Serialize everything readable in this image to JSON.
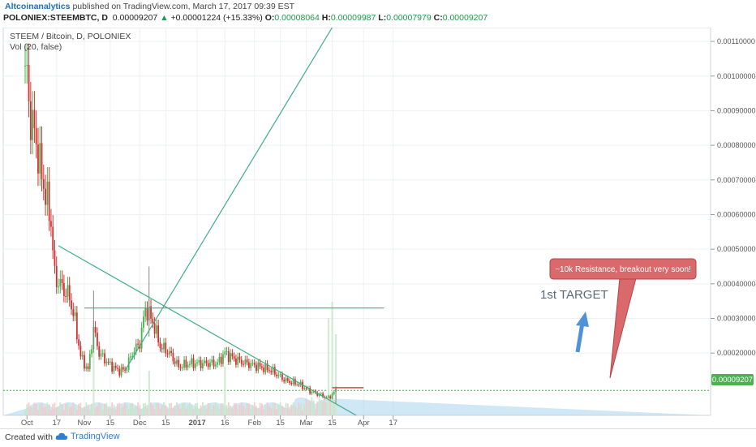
{
  "header": {
    "author": "Altcoinanalytics",
    "published": "published on TradingView.com, March 17, 2017 09:39 EST",
    "symbol": "POLONIEX:STEEMBTC, D",
    "last": "0.00009207",
    "change_arrow": "▲",
    "change": "+0.00001224 (+15.33%)",
    "o_label": "O:",
    "o_value": "0.00008064",
    "h_label": "H:",
    "h_value": "0.00009987",
    "l_label": "L:",
    "l_value": "0.00007979",
    "c_label": "C:",
    "c_value": "0.00009207"
  },
  "legend": {
    "title": "STEEM / Bitcoin, D, POLONIEX",
    "volume": "Vol (20, false)"
  },
  "annotations": {
    "callout": "~10k Resistance, breakout very soon!",
    "target": "1st TARGET"
  },
  "footer": {
    "created_with": "Created with",
    "brand": "TradingView"
  },
  "colors": {
    "up_candle": "#4caf50",
    "down_candle": "#d32f2f",
    "trendline": "#3dae82",
    "callout_fill": "#d9696b",
    "volume_area": "#a9d3ef",
    "price_marker": "#4caf50",
    "arrow": "#4f93d6"
  },
  "chart_data": {
    "type": "candlestick",
    "title": "STEEM / Bitcoin, D, POLONIEX",
    "x_ticks": [
      "Oct",
      "17",
      "Nov",
      "15",
      "Dec",
      "15",
      "2017",
      "16",
      "Feb",
      "15",
      "Mar",
      "15",
      "Apr",
      "17"
    ],
    "y_ticks": [
      "0.00110000",
      "0.00100000",
      "0.00090000",
      "0.00080000",
      "0.00070000",
      "0.00060000",
      "0.00050000",
      "0.00040000",
      "0.00030000",
      "0.00020000"
    ],
    "ylim": [
      2e-05,
      0.00114
    ],
    "last_price": "0.00009207",
    "close_series": [
      {
        "date": "2016-09-30",
        "close": 0.00103
      },
      {
        "date": "2016-10-03",
        "close": 0.00088
      },
      {
        "date": "2016-10-06",
        "close": 0.00081
      },
      {
        "date": "2016-10-08",
        "close": 0.00074
      },
      {
        "date": "2016-10-11",
        "close": 0.00066
      },
      {
        "date": "2016-10-14",
        "close": 0.00058
      },
      {
        "date": "2016-10-16",
        "close": 0.00042
      },
      {
        "date": "2016-10-20",
        "close": 0.00039
      },
      {
        "date": "2016-10-24",
        "close": 0.00036
      },
      {
        "date": "2016-10-27",
        "close": 0.00029
      },
      {
        "date": "2016-10-30",
        "close": 0.00019
      },
      {
        "date": "2016-11-03",
        "close": 0.00015
      },
      {
        "date": "2016-11-06",
        "close": 0.00027
      },
      {
        "date": "2016-11-09",
        "close": 0.0002
      },
      {
        "date": "2016-11-14",
        "close": 0.00017
      },
      {
        "date": "2016-11-19",
        "close": 0.00015
      },
      {
        "date": "2016-11-23",
        "close": 0.00015
      },
      {
        "date": "2016-11-27",
        "close": 0.0002
      },
      {
        "date": "2016-12-01",
        "close": 0.00023
      },
      {
        "date": "2016-12-04",
        "close": 0.00033
      },
      {
        "date": "2016-12-08",
        "close": 0.00029
      },
      {
        "date": "2016-12-12",
        "close": 0.00022
      },
      {
        "date": "2016-12-17",
        "close": 0.0002
      },
      {
        "date": "2016-12-22",
        "close": 0.00016
      },
      {
        "date": "2016-12-28",
        "close": 0.00017
      },
      {
        "date": "2017-01-05",
        "close": 0.00017
      },
      {
        "date": "2017-01-12",
        "close": 0.00017
      },
      {
        "date": "2017-01-16",
        "close": 0.0002
      },
      {
        "date": "2017-01-22",
        "close": 0.00018
      },
      {
        "date": "2017-01-28",
        "close": 0.00017
      },
      {
        "date": "2017-02-04",
        "close": 0.00016
      },
      {
        "date": "2017-02-10",
        "close": 0.00015
      },
      {
        "date": "2017-02-18",
        "close": 0.00012
      },
      {
        "date": "2017-02-25",
        "close": 0.00011
      },
      {
        "date": "2017-03-03",
        "close": 9e-05
      },
      {
        "date": "2017-03-08",
        "close": 8e-05
      },
      {
        "date": "2017-03-13",
        "close": 7e-05
      },
      {
        "date": "2017-03-17",
        "close": 9.207e-05
      }
    ],
    "spikes": [
      {
        "date": "2016-11-06",
        "high": 0.00038
      },
      {
        "date": "2016-12-06",
        "high": 0.00045
      },
      {
        "date": "2017-03-17",
        "high": 9.987e-05
      }
    ],
    "lines": [
      {
        "name": "Downtrend",
        "from": {
          "date": "2016-10-18",
          "price": 0.00051
        },
        "to": {
          "date": "2017-03-28",
          "price": 2e-05
        }
      },
      {
        "name": "Uptrend",
        "from": {
          "date": "2016-11-23",
          "price": 0.00015
        },
        "to": {
          "date": "2017-03-15",
          "price": 0.00114
        }
      },
      {
        "name": "1st TARGET",
        "from": {
          "date": "2016-11-01",
          "price": 0.00033
        },
        "to": {
          "date": "2017-04-12",
          "price": 0.00033
        }
      },
      {
        "name": "~10k Resistance",
        "from": {
          "date": "2017-03-15",
          "price": 0.0001
        },
        "to": {
          "date": "2017-04-01",
          "price": 0.0001
        }
      }
    ]
  }
}
